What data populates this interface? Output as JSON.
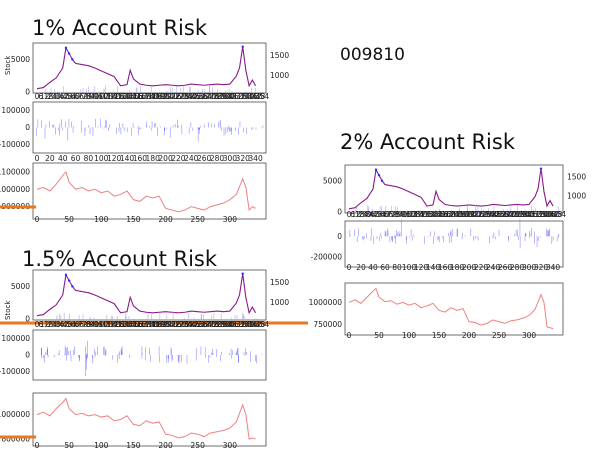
{
  "stock_code": "009810",
  "panel_titles": [
    "1% Account Risk",
    "2% Account Risk",
    "1.5% Account Risk"
  ],
  "price_axis_label": "Stock",
  "colors": {
    "price_line": "#8b1a8b",
    "price_highlight": "#2a2aff",
    "position_line": "#7777ff",
    "account_line": "#f08080",
    "marker": "#e87722"
  },
  "chart_data": [
    {
      "type": "line",
      "title": "1% Account Risk",
      "subplots": [
        {
          "name": "price",
          "ylabel": "Stock",
          "left_ticks": [
            "5000",
            "0"
          ],
          "right_ticks": [
            "1500",
            "1000"
          ],
          "ylim": [
            0,
            8000
          ],
          "x": [
            0,
            10,
            20,
            30,
            40,
            45,
            50,
            55,
            60,
            70,
            80,
            90,
            100,
            110,
            120,
            130,
            140,
            145,
            150,
            160,
            170,
            180,
            190,
            200,
            210,
            220,
            230,
            240,
            250,
            260,
            270,
            280,
            290,
            300,
            310,
            315,
            320,
            325,
            330,
            335,
            340
          ],
          "values": [
            400,
            600,
            1500,
            2300,
            4000,
            7500,
            6500,
            5500,
            4800,
            4600,
            4400,
            4000,
            3500,
            3000,
            2500,
            900,
            1100,
            3600,
            2100,
            1200,
            1000,
            900,
            1000,
            1100,
            1000,
            900,
            1000,
            1200,
            1100,
            1000,
            1100,
            1200,
            1100,
            1200,
            2600,
            4000,
            7700,
            3500,
            900,
            1900,
            900
          ]
        },
        {
          "name": "position",
          "left_ticks": [
            "100000",
            "0",
            "-100000"
          ],
          "ylim": [
            -150000,
            150000
          ]
        },
        {
          "name": "account",
          "left_ticks": [
            "1100000",
            "1000000",
            "900000"
          ],
          "x_ticks": [
            "0",
            "20",
            "40",
            "60",
            "80",
            "100",
            "120",
            "140",
            "160",
            "180",
            "200",
            "220",
            "240",
            "260",
            "280",
            "300",
            "320",
            "340"
          ],
          "x_ticks_lower": [
            "0",
            "50",
            "100",
            "150",
            "200",
            "250",
            "300"
          ],
          "ylim": [
            840000,
            1140000
          ],
          "x": [
            0,
            10,
            20,
            30,
            40,
            45,
            50,
            60,
            70,
            80,
            90,
            100,
            110,
            120,
            130,
            140,
            150,
            160,
            170,
            180,
            190,
            200,
            210,
            220,
            230,
            240,
            250,
            260,
            270,
            280,
            290,
            300,
            310,
            320,
            325,
            330,
            335,
            340
          ],
          "values": [
            1000000,
            1010000,
            990000,
            1030000,
            1080000,
            1100000,
            1040000,
            1000000,
            1010000,
            990000,
            1000000,
            980000,
            990000,
            960000,
            970000,
            990000,
            940000,
            930000,
            960000,
            950000,
            960000,
            890000,
            880000,
            870000,
            880000,
            900000,
            890000,
            880000,
            900000,
            910000,
            920000,
            940000,
            970000,
            1060000,
            1010000,
            880000,
            900000,
            890000
          ]
        }
      ]
    },
    {
      "type": "line",
      "title": "2% Account Risk",
      "subplots": [
        {
          "name": "price",
          "left_ticks": [
            "5000",
            "0"
          ],
          "right_ticks": [
            "1500",
            "1000"
          ],
          "ylim": [
            0,
            8000
          ],
          "x": [
            0,
            10,
            20,
            30,
            40,
            45,
            50,
            55,
            60,
            70,
            80,
            90,
            100,
            110,
            120,
            130,
            140,
            145,
            150,
            160,
            170,
            180,
            190,
            200,
            210,
            220,
            230,
            240,
            250,
            260,
            270,
            280,
            290,
            300,
            310,
            315,
            320,
            325,
            330,
            335,
            340
          ],
          "values": [
            400,
            600,
            1500,
            2300,
            4000,
            7500,
            6500,
            5500,
            4800,
            4600,
            4400,
            4000,
            3500,
            3000,
            2500,
            900,
            1100,
            3600,
            2100,
            1200,
            1000,
            900,
            1000,
            1100,
            1000,
            900,
            1000,
            1200,
            1100,
            1000,
            1100,
            1200,
            1100,
            1200,
            2600,
            4000,
            7700,
            3500,
            900,
            1900,
            900
          ]
        },
        {
          "name": "position",
          "left_ticks": [
            "0",
            "-200000"
          ],
          "ylim": [
            -300000,
            150000
          ]
        },
        {
          "name": "account",
          "left_ticks": [
            "1000000",
            "750000"
          ],
          "x_ticks": [
            "0",
            "20",
            "40",
            "60",
            "80",
            "100",
            "120",
            "140",
            "160",
            "180",
            "200",
            "220",
            "240",
            "260",
            "280",
            "300",
            "320",
            "340"
          ],
          "x_ticks_lower": [
            "0",
            "50",
            "100",
            "150",
            "200",
            "250",
            "300"
          ],
          "ylim": [
            650000,
            1200000
          ],
          "x": [
            0,
            10,
            20,
            30,
            40,
            45,
            50,
            60,
            70,
            80,
            90,
            100,
            110,
            120,
            130,
            140,
            150,
            160,
            170,
            180,
            190,
            200,
            210,
            220,
            230,
            240,
            250,
            260,
            270,
            280,
            290,
            300,
            310,
            320,
            325,
            330,
            335,
            340
          ],
          "values": [
            1000000,
            1030000,
            990000,
            1060000,
            1130000,
            1160000,
            1060000,
            1010000,
            1020000,
            980000,
            1000000,
            970000,
            990000,
            940000,
            960000,
            990000,
            910000,
            890000,
            940000,
            910000,
            930000,
            780000,
            770000,
            740000,
            760000,
            800000,
            780000,
            760000,
            790000,
            800000,
            820000,
            850000,
            920000,
            1090000,
            1000000,
            720000,
            710000,
            700000
          ]
        }
      ]
    },
    {
      "type": "line",
      "title": "1.5% Account Risk",
      "subplots": [
        {
          "name": "price",
          "ylabel": "Stock",
          "left_ticks": [
            "5000",
            "0"
          ],
          "right_ticks": [
            "1500",
            "1000"
          ],
          "ylim": [
            0,
            8000
          ],
          "x": [
            0,
            10,
            20,
            30,
            40,
            45,
            50,
            55,
            60,
            70,
            80,
            90,
            100,
            110,
            120,
            130,
            140,
            145,
            150,
            160,
            170,
            180,
            190,
            200,
            210,
            220,
            230,
            240,
            250,
            260,
            270,
            280,
            290,
            300,
            310,
            315,
            320,
            325,
            330,
            335,
            340
          ],
          "values": [
            400,
            600,
            1500,
            2300,
            4000,
            7500,
            6500,
            5500,
            4800,
            4600,
            4400,
            4000,
            3500,
            3000,
            2500,
            900,
            1100,
            3600,
            2100,
            1200,
            1000,
            900,
            1000,
            1100,
            1000,
            900,
            1000,
            1200,
            1100,
            1000,
            1100,
            1200,
            1100,
            1200,
            2600,
            4000,
            7700,
            3500,
            900,
            1900,
            900
          ]
        },
        {
          "name": "position",
          "left_ticks": [
            "100000",
            "0",
            "-100000"
          ],
          "ylim": [
            -150000,
            150000
          ]
        },
        {
          "name": "account",
          "left_ticks": [
            "1000000",
            "800000"
          ],
          "x_ticks": [
            "0",
            "20",
            "40",
            "60",
            "80",
            "100",
            "120",
            "140",
            "160",
            "180",
            "200",
            "220",
            "240",
            "260",
            "280",
            "300",
            "320",
            "340"
          ],
          "x_ticks_lower": [
            "0",
            "50",
            "100",
            "150",
            "200",
            "250",
            "300"
          ],
          "ylim": [
            760000,
            1160000
          ],
          "x": [
            0,
            10,
            20,
            30,
            40,
            45,
            50,
            60,
            70,
            80,
            90,
            100,
            110,
            120,
            130,
            140,
            150,
            160,
            170,
            180,
            190,
            200,
            210,
            220,
            230,
            240,
            250,
            260,
            270,
            280,
            290,
            300,
            310,
            320,
            325,
            330,
            335,
            340
          ],
          "values": [
            1000000,
            1020000,
            990000,
            1050000,
            1100000,
            1130000,
            1050000,
            1000000,
            1010000,
            990000,
            1000000,
            980000,
            990000,
            950000,
            960000,
            990000,
            920000,
            910000,
            950000,
            930000,
            940000,
            840000,
            830000,
            810000,
            820000,
            850000,
            840000,
            820000,
            850000,
            860000,
            870000,
            890000,
            940000,
            1080000,
            1000000,
            800000,
            810000,
            800000
          ]
        }
      ]
    }
  ]
}
